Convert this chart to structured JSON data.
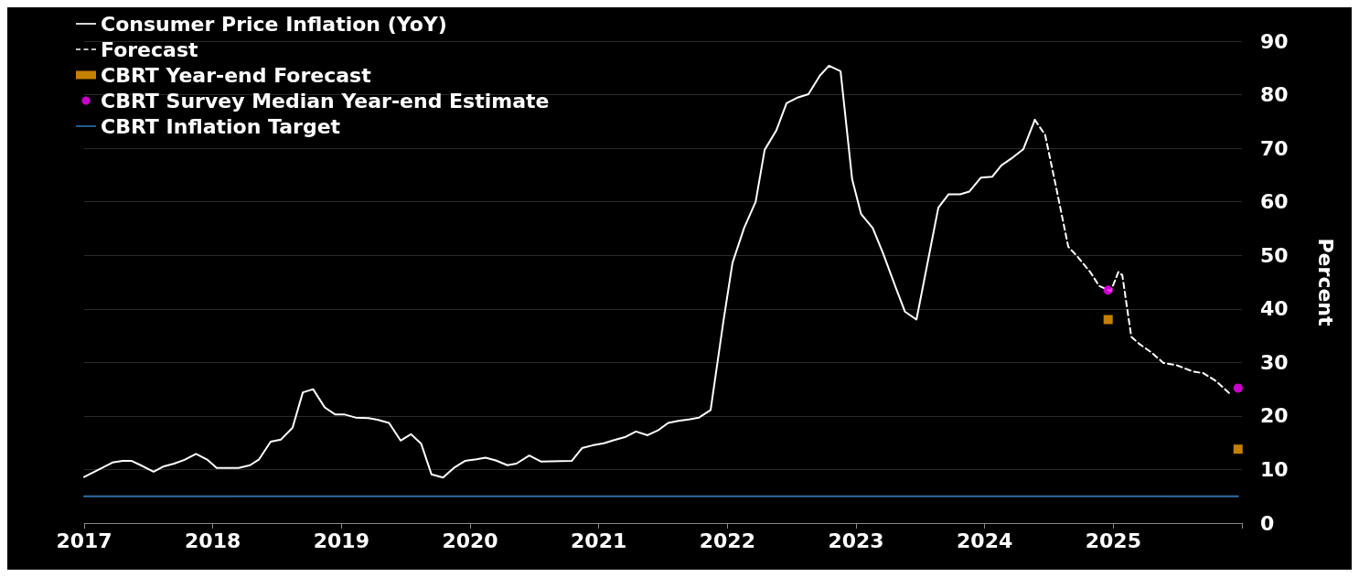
{
  "chart_data": {
    "type": "line",
    "ylabel": "Percent",
    "xlim": [
      2017,
      2026
    ],
    "xticks": [
      2017,
      2018,
      2019,
      2020,
      2021,
      2022,
      2023,
      2024,
      2025,
      {
        "value": 2026,
        "label": null
      }
    ],
    "ylim": [
      0,
      90
    ],
    "yticks": [
      0,
      10,
      20,
      30,
      40,
      50,
      60,
      70,
      80,
      90
    ],
    "grid": "y",
    "legend": "top left",
    "series": [
      {
        "name": "Consumer Price Inflation (YoY)",
        "type": "line",
        "color": "#ffffff",
        "line_style": "solid",
        "marker": "none",
        "x": [
          2017.0,
          2017.14,
          2017.22,
          2017.3,
          2017.37,
          2017.44,
          2017.54,
          2017.62,
          2017.7,
          2017.78,
          2017.87,
          2017.96,
          2018.03,
          2018.2,
          2018.29,
          2018.36,
          2018.45,
          2018.53,
          2018.62,
          2018.7,
          2018.78,
          2018.87,
          2018.95,
          2019.02,
          2019.11,
          2019.21,
          2019.28,
          2019.37,
          2019.46,
          2019.54,
          2019.62,
          2019.7,
          2019.79,
          2019.88,
          2019.96,
          2020.05,
          2020.12,
          2020.2,
          2020.29,
          2020.36,
          2020.46,
          2020.55,
          2020.79,
          2020.87,
          2020.95,
          2021.04,
          2021.12,
          2021.21,
          2021.29,
          2021.38,
          2021.46,
          2021.54,
          2021.62,
          2021.71,
          2021.78,
          2021.87,
          2021.97,
          2022.04,
          2022.13,
          2022.22,
          2022.29,
          2022.38,
          2022.46,
          2022.54,
          2022.63,
          2022.72,
          2022.79,
          2022.88,
          2022.97,
          2023.04,
          2023.13,
          2023.21,
          2023.31,
          2023.38,
          2023.47,
          2023.64,
          2023.72,
          2023.81,
          2023.88,
          2023.97,
          2024.06,
          2024.13,
          2024.22,
          2024.3,
          2024.39
        ],
        "values": [
          8.6,
          10.3,
          11.3,
          11.6,
          11.6,
          10.8,
          9.6,
          10.6,
          11.1,
          11.8,
          12.9,
          11.8,
          10.3,
          10.3,
          10.8,
          11.9,
          15.2,
          15.6,
          17.8,
          24.4,
          25.0,
          21.6,
          20.3,
          20.3,
          19.7,
          19.6,
          19.3,
          18.7,
          15.4,
          16.6,
          14.8,
          9.1,
          8.5,
          10.4,
          11.6,
          11.9,
          12.2,
          11.7,
          10.8,
          11.1,
          12.6,
          11.5,
          11.6,
          14.0,
          14.5,
          14.9,
          15.5,
          16.1,
          17.1,
          16.4,
          17.3,
          18.7,
          19.1,
          19.4,
          19.7,
          21.1,
          37.8,
          48.6,
          55.1,
          60.0,
          69.7,
          73.3,
          78.4,
          79.4,
          80.1,
          83.6,
          85.4,
          84.4,
          64.2,
          57.7,
          55.1,
          50.4,
          43.9,
          39.5,
          38.0,
          58.9,
          61.4,
          61.4,
          61.9,
          64.5,
          64.7,
          66.8,
          68.3,
          69.8,
          75.3
        ]
      },
      {
        "name": "Forecast",
        "type": "line",
        "color": "#ffffff",
        "line_style": "dashed",
        "marker": "none",
        "x": [
          2024.39,
          2024.47,
          2024.56,
          2024.65,
          2024.72,
          2024.82,
          2024.89,
          2024.98,
          2025.04,
          2025.07,
          2025.14,
          2025.2,
          2025.3,
          2025.39,
          2025.49,
          2025.62,
          2025.7,
          2025.8,
          2025.9
        ],
        "values": [
          75.3,
          72.5,
          62.2,
          51.6,
          49.8,
          46.9,
          44.3,
          43.3,
          46.9,
          46.3,
          34.8,
          33.5,
          31.8,
          29.9,
          29.5,
          28.3,
          28.0,
          26.5,
          24.3
        ]
      },
      {
        "name": "CBRT Year-end Forecast",
        "type": "scatter",
        "color": "#f5a000",
        "marker": "square",
        "x": [
          2024.96,
          2025.97
        ],
        "values": [
          38.0,
          13.8
        ]
      },
      {
        "name": "CBRT Survey Median Year-end Estimate",
        "type": "scatter",
        "color": "#ff00ff",
        "marker": "circle",
        "x": [
          2024.96,
          2025.97
        ],
        "values": [
          43.5,
          25.2
        ]
      },
      {
        "name": "CBRT Inflation Target",
        "type": "line",
        "color": "#2e6da4",
        "line_style": "solid",
        "marker": "none",
        "x": [
          2017.0,
          2025.97
        ],
        "values": [
          5,
          5
        ]
      }
    ]
  }
}
